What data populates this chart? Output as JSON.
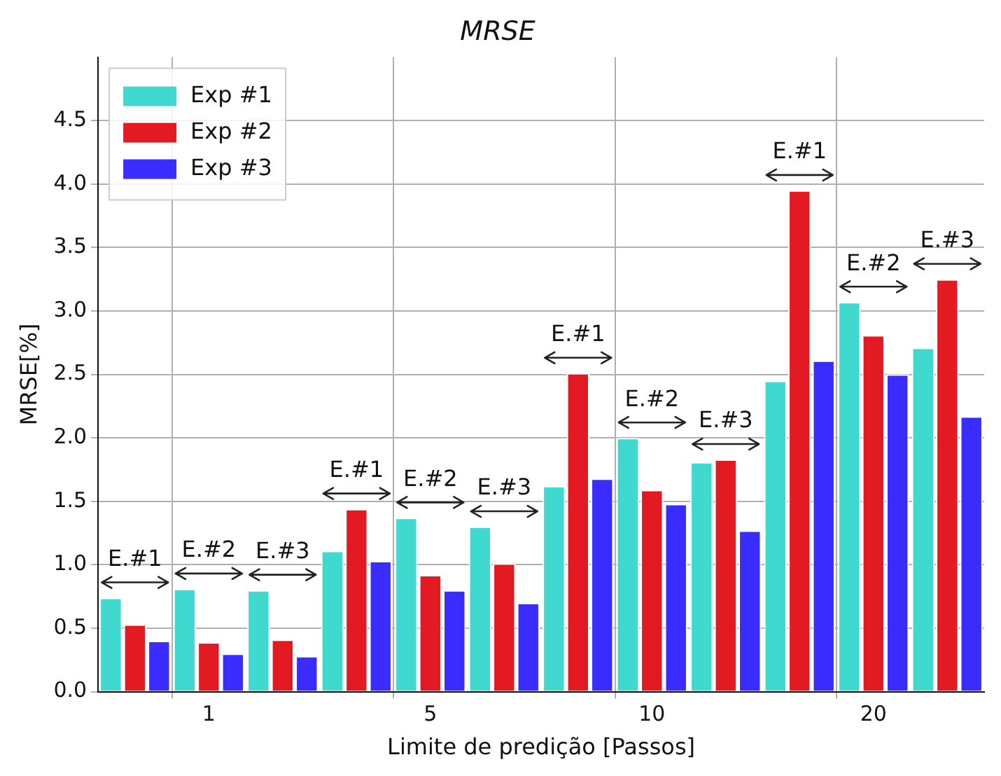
{
  "chart_data": {
    "type": "bar",
    "title": "MRSE",
    "xlabel": "Limite de predição [Passos]",
    "ylabel": "MRSE[%]",
    "categories": [
      null,
      "1",
      null,
      null,
      "5",
      null,
      null,
      "10",
      null,
      null,
      "20",
      null
    ],
    "series": [
      {
        "name": "Exp #1",
        "color": "#40d9d0",
        "values": [
          0.74,
          0.81,
          0.8,
          1.11,
          1.37,
          1.3,
          1.62,
          2.0,
          1.81,
          2.45,
          3.07,
          2.71
        ]
      },
      {
        "name": "Exp #2",
        "color": "#e31a22",
        "values": [
          0.53,
          0.39,
          0.41,
          1.44,
          0.92,
          1.01,
          2.51,
          1.59,
          1.83,
          3.95,
          2.81,
          3.25
        ]
      },
      {
        "name": "Exp #3",
        "color": "#3a2cff",
        "values": [
          0.4,
          0.3,
          0.28,
          1.03,
          0.8,
          0.7,
          1.68,
          1.48,
          1.27,
          2.61,
          2.5,
          2.17
        ]
      }
    ],
    "ylim": [
      0,
      5
    ],
    "yticks": [
      {
        "value": 0,
        "label": "0.0"
      },
      {
        "value": 0.5,
        "label": "0.5"
      },
      {
        "value": 1,
        "label": "1.0"
      },
      {
        "value": 1.5,
        "label": "1.5"
      },
      {
        "value": 2,
        "label": "2.0"
      },
      {
        "value": 2.5,
        "label": "2.5"
      },
      {
        "value": 3,
        "label": "3.0"
      },
      {
        "value": 3.5,
        "label": "3.5"
      },
      {
        "value": 4,
        "label": "4.0"
      },
      {
        "value": 4.5,
        "label": "4.5"
      }
    ],
    "annotations": [
      "E.#1",
      "E.#2",
      "E.#3",
      "E.#1",
      "E.#2",
      "E.#3",
      "E.#1",
      "E.#2",
      "E.#3",
      "E.#1",
      "E.#2",
      "E.#3"
    ],
    "grid": true,
    "legend": "top left"
  }
}
